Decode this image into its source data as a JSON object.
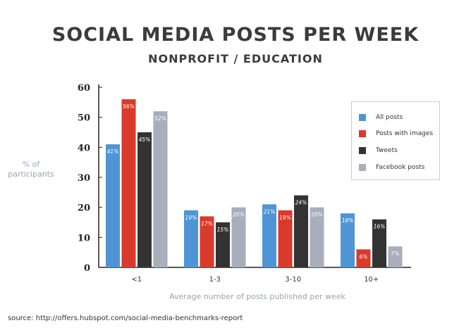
{
  "header": {
    "title": "SOCIAL MEDIA POSTS PER WEEK",
    "subtitle": "NONPROFIT / EDUCATION"
  },
  "footer": {
    "source": "source: http://offers.hubspot.com/social-media-benchmarks-report"
  },
  "chart_data": {
    "type": "bar",
    "title": "SOCIAL MEDIA POSTS PER WEEK",
    "subtitle": "NONPROFIT / EDUCATION",
    "xlabel": "Average number of posts published per week",
    "ylabel": "% of participants",
    "ylim": [
      0,
      60
    ],
    "yticks": [
      0,
      10,
      20,
      30,
      40,
      50,
      60
    ],
    "categories": [
      "<1",
      "1-3",
      "3-10",
      "10+"
    ],
    "legend_position": "top-right",
    "grid": false,
    "series": [
      {
        "name": "All posts",
        "color": "#4f95d6",
        "values": [
          41,
          19,
          21,
          18
        ],
        "labels": [
          "41%",
          "19%",
          "21%",
          "18%"
        ]
      },
      {
        "name": "Posts with images",
        "color": "#d93a2b",
        "values": [
          56,
          17,
          19,
          6
        ],
        "labels": [
          "56%",
          "17%",
          "19%",
          "6%"
        ]
      },
      {
        "name": "Tweets",
        "color": "#333333",
        "values": [
          45,
          15,
          24,
          16
        ],
        "labels": [
          "45%",
          "15%",
          "24%",
          "16%"
        ]
      },
      {
        "name": "Facebook posts",
        "color": "#a8aebb",
        "values": [
          52,
          20,
          20,
          7
        ],
        "labels": [
          "52%",
          "20%",
          "20%",
          "7%"
        ]
      }
    ]
  }
}
